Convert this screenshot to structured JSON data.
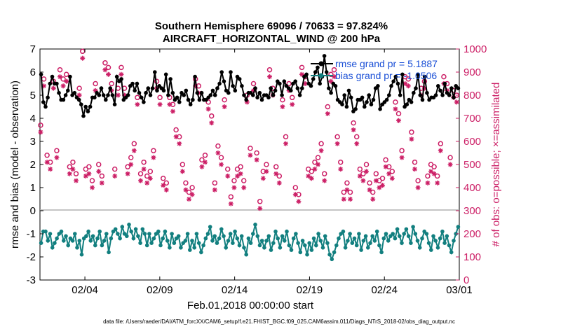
{
  "chart_data": {
    "type": "line",
    "title_line1": "Southern Hemisphere 69096 / 70633 = 97.824%",
    "title_line2": "AIRCRAFT_HORIZONTAL_WIND @ 200 hPa",
    "xlabel": "Feb.01,2018 00:00:00 start",
    "ylabel": "rmse and bias (model - observation)",
    "ylabel_right": "# of obs: o=possible; ×=assimilated",
    "footer": "data file: /Users/raeder/DAI/ATM_forcXX/CAM6_setup/f.e21.FHIST_BGC.f09_025.CAM6assim.011/Diags_NTrS_2018-02/obs_diag_output.nc",
    "xlim": [
      0,
      28
    ],
    "ylim": [
      -3,
      7
    ],
    "ylim_right": [
      0,
      1000
    ],
    "x_ticks": [
      {
        "x": 3,
        "label": "02/04"
      },
      {
        "x": 8,
        "label": "02/09"
      },
      {
        "x": 13,
        "label": "02/14"
      },
      {
        "x": 18,
        "label": "02/19"
      },
      {
        "x": 23,
        "label": "02/24"
      },
      {
        "x": 28,
        "label": "03/01"
      }
    ],
    "y_ticks": [
      "-3",
      "-2",
      "-1",
      "0",
      "1",
      "2",
      "3",
      "4",
      "5",
      "6",
      "7"
    ],
    "y_ticks_right": [
      "0",
      "100",
      "200",
      "300",
      "400",
      "500",
      "600",
      "700",
      "800",
      "900",
      "1000"
    ],
    "colors": {
      "rmse": "#000000",
      "bias": "#127f7f",
      "obs": "#cc1f66",
      "zero_line": "#b0b0b0",
      "legend_text": "#1a4fd6"
    },
    "series": [
      {
        "name": "rmse",
        "legend": "rmse grand pr = 5.1887",
        "values": [
          5.9,
          4.7,
          4.5,
          4.9,
          5.5,
          5.8,
          5.5,
          5.5,
          5.1,
          4.8,
          4.8,
          5.0,
          5.2,
          5.8,
          5.0,
          5.1,
          4.9,
          4.8,
          4.6,
          4.1,
          4.5,
          4.3,
          4.5,
          4.9,
          4.9,
          5.1,
          5.0,
          5.3,
          5.0,
          4.8,
          5.0,
          5.3,
          5.0,
          4.6,
          5.8,
          5.6,
          5.7,
          4.8,
          4.9,
          5.0,
          5.4,
          5.5,
          5.2,
          5.5,
          5.1,
          4.9,
          4.7,
          5.1,
          5.3,
          5.0,
          5.3,
          6.0,
          5.2,
          5.4,
          5.3,
          5.2,
          5.9,
          5.0,
          5.7,
          5.1,
          4.8,
          4.9,
          4.7,
          5.1,
          5.0,
          5.2,
          4.8,
          4.6,
          4.8,
          5.8,
          5.1,
          4.8,
          5.1,
          4.8,
          4.8,
          4.9,
          5.0,
          5.2,
          5.0,
          5.3,
          5.5,
          6.0,
          5.6,
          5.2,
          5.1,
          6.0,
          5.4,
          5.2,
          5.8,
          5.7,
          5.4,
          5.0,
          4.8,
          5.1,
          5.1,
          5.0,
          5.3,
          4.9,
          5.1,
          4.8,
          5.0,
          5.0,
          4.9,
          5.3,
          5.0,
          5.2,
          5.6,
          5.5,
          5.0,
          5.6,
          5.4,
          5.3,
          5.2,
          5.5,
          5.6,
          5.3,
          5.0,
          5.3,
          5.8,
          5.9,
          5.5,
          5.4,
          5.7,
          6.0,
          6.2,
          5.5,
          5.8,
          6.7,
          6.0,
          5.3,
          5.1,
          5.5,
          5.4,
          4.8,
          4.7,
          4.6,
          5.0,
          4.5,
          5.2,
          4.9,
          4.3,
          4.4,
          4.8,
          4.8,
          4.9,
          4.5,
          4.7,
          5.0,
          4.6,
          4.8,
          5.3,
          5.4,
          4.4,
          4.6,
          4.7,
          4.8,
          5.0,
          5.4,
          5.6,
          5.8,
          5.5,
          5.0,
          5.9,
          4.5,
          4.6,
          4.8,
          4.7,
          5.1,
          5.3,
          5.9,
          5.0,
          4.8,
          5.8,
          5.1,
          4.8,
          4.9,
          4.9,
          5.0,
          5.4,
          5.2,
          5.0,
          5.5,
          5.1,
          5.0,
          5.3,
          4.9,
          5.4,
          5.3
        ],
        "values_note": "one value per step of 0.15 day"
      },
      {
        "name": "bias",
        "legend": "bias grand pr = -1.0506",
        "values": [
          -1.4,
          -0.9,
          -0.9,
          -1.3,
          -1.0,
          -1.6,
          -1.4,
          -1.2,
          -1.0,
          -0.9,
          -1.3,
          -1.1,
          -1.5,
          -1.2,
          -1.3,
          -1.0,
          -1.6,
          -1.3,
          -1.9,
          -1.2,
          -1.1,
          -0.9,
          -1.3,
          -1.1,
          -1.5,
          -1.2,
          -0.9,
          -1.5,
          -1.3,
          -1.0,
          -1.8,
          -1.2,
          -0.9,
          -0.8,
          -1.0,
          -1.2,
          -0.7,
          -1.0,
          -1.1,
          -0.6,
          -0.9,
          -1.2,
          -0.8,
          -1.1,
          -1.4,
          -0.8,
          -1.0,
          -1.5,
          -1.0,
          -1.4,
          -1.2,
          -1.0,
          -0.9,
          -1.5,
          -1.2,
          -0.9,
          -1.3,
          -1.6,
          -1.0,
          -1.4,
          -1.2,
          -1.1,
          -1.6,
          -1.4,
          -1.3,
          -1.0,
          -1.7,
          -1.3,
          -1.6,
          -1.0,
          -1.4,
          -1.8,
          -1.5,
          -1.2,
          -1.0,
          -0.7,
          -1.3,
          -1.1,
          -1.4,
          -1.2,
          -0.8,
          -1.1,
          -1.6,
          -1.3,
          -1.0,
          -1.4,
          -0.9,
          -1.2,
          -1.5,
          -1.1,
          -1.6,
          -1.9,
          -1.2,
          -1.4,
          -1.0,
          -0.6,
          -1.1,
          -1.5,
          -1.3,
          -1.6,
          -1.3,
          -1.1,
          -1.7,
          -1.4,
          -0.9,
          -1.2,
          -1.6,
          -1.1,
          -1.3,
          -0.9,
          -1.5,
          -1.7,
          -1.2,
          -1.0,
          -1.4,
          -1.8,
          -1.3,
          -1.5,
          -1.9,
          -1.4,
          -1.7,
          -1.2,
          -1.5,
          -1.0,
          -1.3,
          -1.6,
          -1.1,
          -1.4,
          -1.9,
          -2.1,
          -1.8,
          -1.5,
          -1.2,
          -1.0,
          -0.9,
          -1.6,
          -1.3,
          -1.0,
          -1.4,
          -1.2,
          -1.5,
          -1.0,
          -1.7,
          -1.3,
          -1.1,
          -1.6,
          -1.4,
          -1.1,
          -1.3,
          -0.9,
          -1.5,
          -1.8,
          -1.2,
          -1.0,
          -1.3,
          -1.1,
          -1.0,
          -1.2,
          -0.8,
          -1.1,
          -1.4,
          -1.0,
          -0.8,
          -1.1,
          -1.4,
          -0.7,
          -1.0,
          -1.3,
          -1.6,
          -1.2,
          -0.9,
          -1.0,
          -1.4,
          -1.7,
          -1.1,
          -1.3,
          -1.6,
          -1.2,
          -0.9,
          -1.4,
          -1.1,
          -1.5,
          -1.8,
          -1.3,
          -1.0,
          -0.7
        ],
        "values_note": "one value per step of 0.15 day"
      },
      {
        "name": "obs_possible",
        "marker": "o",
        "values": [
          670,
          870,
          540,
          510,
          860,
          560,
          910,
          870,
          890,
          490,
          510,
          460,
          830,
          990,
          480,
          490,
          430,
          850,
          500,
          450,
          940,
          920,
          850,
          480,
          830,
          920,
          830,
          490,
          530,
          590,
          790,
          460,
          510,
          450,
          470,
          560,
          860,
          790,
          440,
          420,
          790,
          760,
          650,
          620,
          500,
          420,
          380,
          400,
          870,
          840,
          520,
          540,
          770,
          710,
          420,
          580,
          530,
          780,
          480,
          360,
          430,
          480,
          490,
          430,
          800,
          570,
          850,
          550,
          340,
          470,
          500,
          910,
          830,
          490,
          450,
          780,
          620,
          850,
          790,
          400,
          370,
          920,
          880,
          480,
          470,
          510,
          530,
          590,
          460,
          750,
          890,
          910,
          620,
          510,
          380,
          420,
          380,
          680,
          620,
          480,
          460,
          500,
          420,
          380,
          460,
          430,
          440,
          520,
          490,
          470,
          770,
          720,
          560,
          880,
          870,
          640,
          510,
          430,
          830,
          860,
          450,
          500,
          490,
          450,
          590,
          880,
          850,
          530,
          820,
          800
        ],
        "values_note": "count scale 0-1000, one value per step of ~0.21 day"
      }
    ]
  }
}
